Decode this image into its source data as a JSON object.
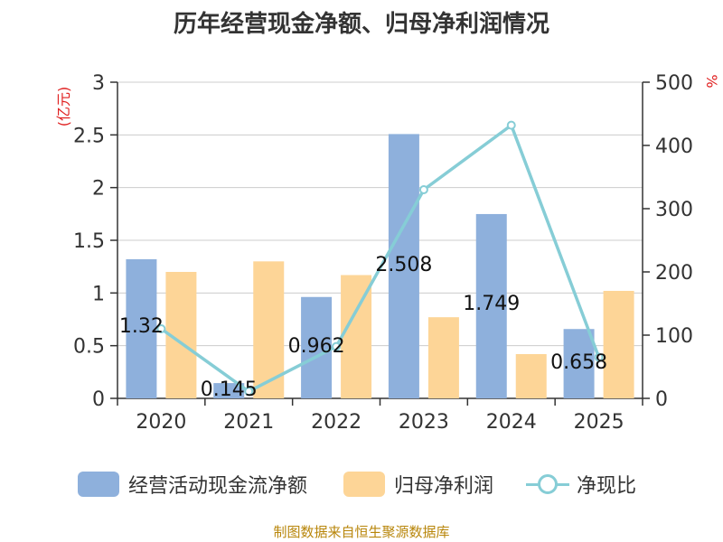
{
  "chart_data": {
    "type": "bar",
    "title": "历年经营现金净额、归母净利润情况",
    "categories": [
      "2020",
      "2021",
      "2022",
      "2023",
      "2024",
      "2025"
    ],
    "series": [
      {
        "name": "经营活动现金流净额",
        "type": "bar",
        "axis": "left",
        "values": [
          1.32,
          0.145,
          0.962,
          2.508,
          1.749,
          0.658
        ],
        "color": "#8eb0dc"
      },
      {
        "name": "归母净利润",
        "type": "bar",
        "axis": "left",
        "values": [
          1.2,
          1.3,
          1.17,
          0.77,
          0.42,
          1.02
        ],
        "color": "#fdd597"
      },
      {
        "name": "净现比",
        "type": "line",
        "axis": "right",
        "values": [
          110,
          11,
          82,
          330,
          432,
          65
        ],
        "color": "#86cdd6"
      }
    ],
    "data_labels": [
      "1.32",
      "0.145",
      "0.962",
      "2.508",
      "1.749",
      "0.658"
    ],
    "left_axis": {
      "label": "(亿元)",
      "ylim": [
        0,
        3
      ],
      "ticks": [
        "0",
        "0.5",
        "1",
        "1.5",
        "2",
        "2.5",
        "3"
      ]
    },
    "right_axis": {
      "label": "%",
      "ylim": [
        0,
        500
      ],
      "ticks": [
        "0",
        "100",
        "200",
        "300",
        "400",
        "500"
      ]
    },
    "grid": true,
    "legend_position": "bottom",
    "source": "制图数据来自恒生聚源数据库"
  }
}
